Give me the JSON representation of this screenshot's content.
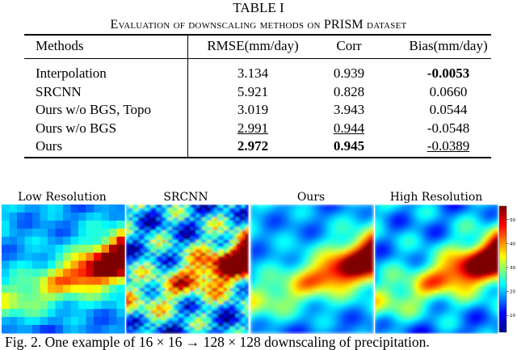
{
  "table": {
    "label": "TABLE I",
    "caption": "Evaluation of downscaling methods on PRISM dataset",
    "header": [
      "Methods",
      "RMSE(mm/day)",
      "Corr",
      "Bias(mm/day)"
    ],
    "rows": [
      [
        "Interpolation",
        "3.134",
        "0.939",
        "-0.0053"
      ],
      [
        "SRCNN",
        "5.921",
        "0.828",
        "0.0660"
      ],
      [
        "Ours w/o BGS, Topo",
        "3.019",
        "3.943",
        "0.0544"
      ],
      [
        "Ours w/o BGS",
        "2.991",
        "0.944",
        "-0.0548"
      ],
      [
        "Ours",
        "2.972",
        "0.945",
        "-0.0389"
      ]
    ]
  },
  "figure": {
    "panels": [
      "Low Resolution",
      "SRCNN",
      "Ours",
      "High Resolution"
    ],
    "colorbar_ticks": [
      10,
      20,
      30,
      40,
      50
    ],
    "caption": "Fig. 2.  One example of 16 × 16 → 128 × 128 downscaling of precipitation."
  }
}
